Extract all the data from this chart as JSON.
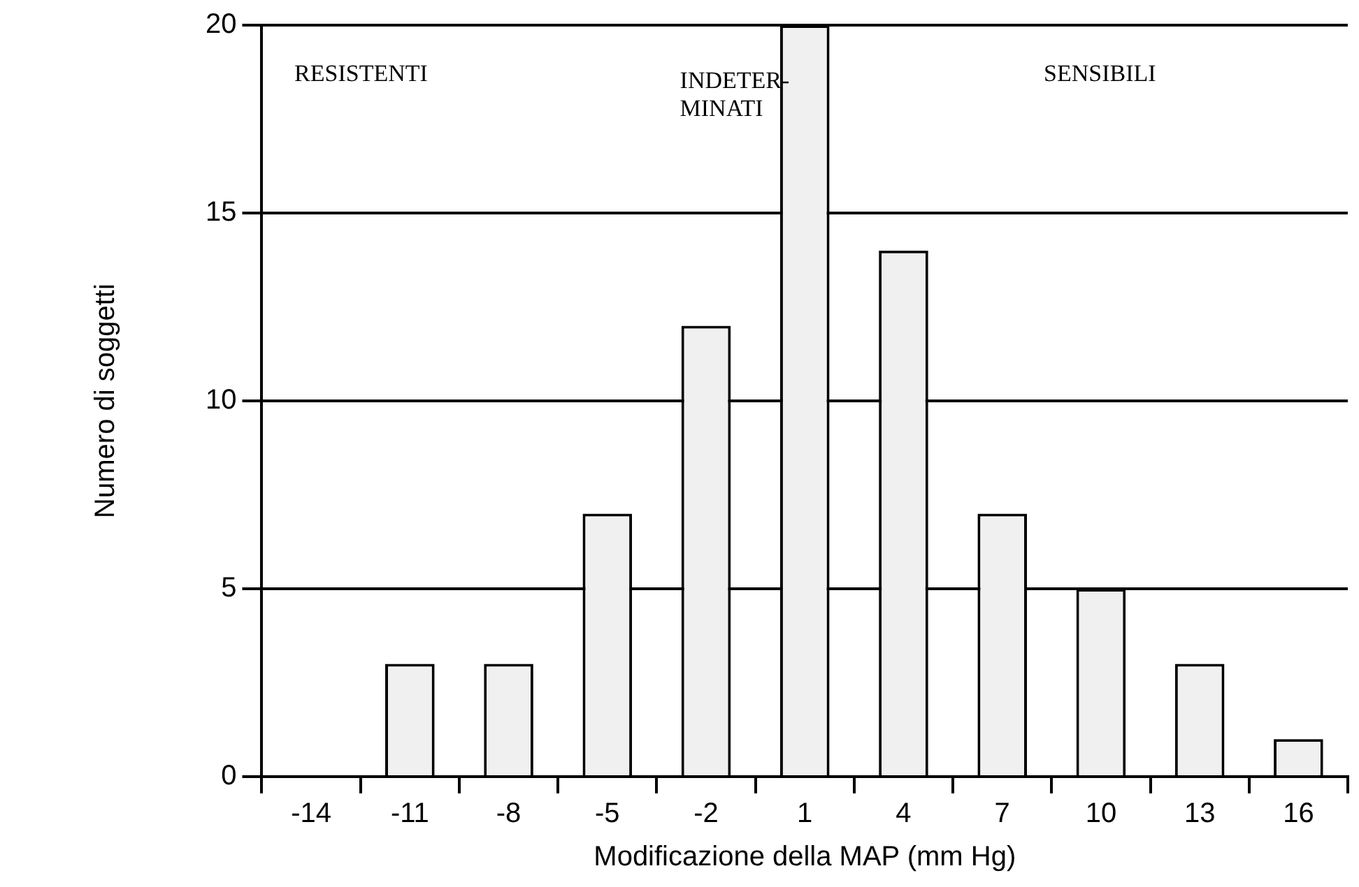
{
  "chart_data": {
    "type": "bar",
    "xlabel": "Modificazione della MAP (mm Hg)",
    "ylabel": "Numero di soggetti",
    "categories": [
      "-14",
      "-11",
      "-8",
      "-5",
      "-2",
      "1",
      "4",
      "7",
      "10",
      "13",
      "16"
    ],
    "values": [
      0,
      3,
      3,
      7,
      12,
      20,
      14,
      7,
      5,
      3,
      1
    ],
    "color": "#f0f0f0",
    "ylim": [
      0,
      20
    ],
    "yticks": [
      0,
      5,
      10,
      15,
      20
    ],
    "grid": "y",
    "legend": false,
    "annotations": [
      "RESISTENTI",
      "INDETER-\nMINATI",
      "SENSIBILI"
    ]
  }
}
